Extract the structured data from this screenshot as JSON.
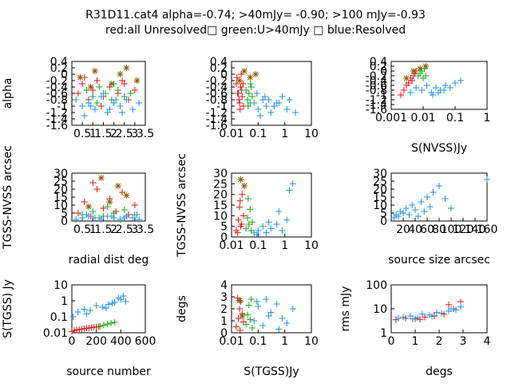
{
  "title_line1": "R31D11.cat4 alpha=-0.74; >40mJy= -0.90; >100 mJy=-0.93",
  "title_line2": "red:all Unresolved□ green:U>40mJy □ blue:Resolved",
  "colors": {
    "red": "#ee1111",
    "green": "#11aa11",
    "blue": "#1e90e6",
    "brown": "#8b5a00"
  },
  "chart_data": [
    {
      "id": "p1",
      "type": "scatter",
      "xlabel": "",
      "ylabel": "alpha",
      "xscale": "linear",
      "yscale": "linear",
      "xlim": [
        0,
        3.5
      ],
      "ylim": [
        -1.6,
        0.4
      ],
      "xticks": [
        "0.5",
        "1",
        "1.5",
        "2",
        "2.5",
        "3",
        "3.5"
      ],
      "yticks": [
        "0.4",
        "0.2",
        "0",
        "-0.2",
        "-0.4",
        "-0.6",
        "-0.8",
        "-1",
        "-1.2",
        "-1.4",
        "-1.6"
      ],
      "series": [
        {
          "color": "red",
          "marker": "plus",
          "x": [
            0.3,
            0.5,
            0.8,
            1.0,
            1.2,
            1.5,
            1.8,
            2.0,
            2.2,
            2.5,
            2.7,
            3.0,
            0.6,
            1.4,
            2.4
          ],
          "y": [
            -0.6,
            -0.3,
            -0.8,
            -0.5,
            -0.2,
            -0.7,
            -0.4,
            -0.9,
            -0.6,
            -0.3,
            -0.8,
            -0.5,
            -0.1,
            -1.0,
            -0.2
          ]
        },
        {
          "color": "brown",
          "marker": "star",
          "x": [
            0.4,
            1.1,
            1.9,
            2.6,
            3.1,
            0.9,
            2.3
          ],
          "y": [
            -0.1,
            0.1,
            -0.3,
            0.2,
            -0.2,
            -0.4,
            0.0
          ]
        },
        {
          "color": "green",
          "marker": "plus",
          "x": [
            0.7,
            1.0,
            1.3,
            1.6,
            1.9,
            2.2,
            2.5,
            2.8,
            1.2,
            2.0
          ],
          "y": [
            -0.5,
            -0.7,
            -0.4,
            -0.6,
            -0.8,
            -0.5,
            -0.7,
            -0.6,
            -0.9,
            -0.3
          ]
        },
        {
          "color": "blue",
          "marker": "plus",
          "x": [
            0.2,
            0.5,
            0.8,
            1.1,
            1.4,
            1.7,
            2.0,
            2.3,
            2.6,
            2.9,
            3.2,
            0.6,
            1.5,
            2.4,
            1.0,
            2.1,
            0.9,
            1.8
          ],
          "y": [
            -0.8,
            -1.0,
            -0.9,
            -1.1,
            -0.7,
            -1.2,
            -0.9,
            -1.0,
            -0.8,
            -1.1,
            -0.9,
            -1.3,
            -0.6,
            -1.2,
            -0.7,
            -0.8,
            -1.0,
            -1.1
          ]
        }
      ]
    },
    {
      "id": "p2",
      "type": "scatter",
      "xlabel": "",
      "ylabel": "",
      "xscale": "log",
      "yscale": "linear",
      "xlim": [
        0.01,
        10
      ],
      "ylim": [
        -1.6,
        0.4
      ],
      "xticks": [
        "0.01",
        "0.1",
        "1",
        "10"
      ],
      "yticks": [
        "0.4",
        "0.2",
        "0",
        "-0.2",
        "-0.4",
        "-0.6",
        "-0.8",
        "-1",
        "-1.2",
        "-1.4",
        "-1.6"
      ],
      "series": [
        {
          "color": "red",
          "marker": "plus",
          "x": [
            0.015,
            0.018,
            0.02,
            0.022,
            0.025,
            0.028,
            0.016,
            0.019,
            0.024,
            0.021,
            0.027,
            0.017,
            0.023
          ],
          "y": [
            -0.3,
            -0.6,
            -0.9,
            -0.4,
            -0.7,
            -1.0,
            -0.1,
            -0.8,
            -0.5,
            -1.1,
            -0.3,
            -0.6,
            0.0
          ]
        },
        {
          "color": "brown",
          "marker": "star",
          "x": [
            0.02,
            0.03,
            0.05,
            0.08
          ],
          "y": [
            -0.2,
            0.1,
            -0.1,
            0.0
          ]
        },
        {
          "color": "green",
          "marker": "plus",
          "x": [
            0.035,
            0.04,
            0.045,
            0.05,
            0.055,
            0.06,
            0.042,
            0.052
          ],
          "y": [
            -0.5,
            -0.8,
            -0.6,
            -0.9,
            -0.4,
            -0.7,
            -1.0,
            -0.3
          ]
        },
        {
          "color": "blue",
          "marker": "plus",
          "x": [
            0.07,
            0.1,
            0.15,
            0.2,
            0.3,
            0.5,
            0.8,
            1.2,
            0.09,
            0.12,
            0.25,
            0.4,
            0.6,
            1.5,
            2.5,
            0.18
          ],
          "y": [
            -0.9,
            -1.1,
            -0.8,
            -1.0,
            -1.2,
            -0.9,
            -0.7,
            -1.1,
            -0.6,
            -1.3,
            -0.8,
            -1.0,
            -0.9,
            -0.8,
            -1.2,
            -0.7
          ]
        }
      ]
    },
    {
      "id": "p3",
      "type": "scatter",
      "xlabel": "S(NVSS)Jy",
      "ylabel": "",
      "xscale": "log",
      "yscale": "linear",
      "xlim": [
        0.001,
        1
      ],
      "ylim": [
        -1.6,
        0.4
      ],
      "xticks": [
        "0.001",
        "0.01",
        "0.1",
        "1"
      ],
      "yticks": [
        "0.4",
        "0.2",
        "0",
        "-0.2",
        "-0.4",
        "-0.6",
        "-0.8",
        "-1",
        "-1.2",
        "-1.4",
        "-1.6"
      ],
      "series": [
        {
          "color": "red",
          "marker": "plus",
          "x": [
            0.002,
            0.0025,
            0.003,
            0.0035,
            0.004,
            0.0045,
            0.005,
            0.0055,
            0.006
          ],
          "y": [
            -1.0,
            -0.8,
            -0.6,
            -0.5,
            -0.3,
            -0.4,
            -0.2,
            -0.1,
            0.0
          ]
        },
        {
          "color": "brown",
          "marker": "star",
          "x": [
            0.003,
            0.005,
            0.008,
            0.012
          ],
          "y": [
            -0.3,
            0.0,
            0.1,
            0.2
          ]
        },
        {
          "color": "green",
          "marker": "plus",
          "x": [
            0.007,
            0.008,
            0.009,
            0.01,
            0.011,
            0.012
          ],
          "y": [
            -0.2,
            -0.1,
            0.0,
            -0.3,
            0.1,
            -0.2
          ]
        },
        {
          "color": "blue",
          "marker": "plus",
          "x": [
            0.004,
            0.006,
            0.009,
            0.013,
            0.018,
            0.025,
            0.035,
            0.05,
            0.07,
            0.1,
            0.15,
            0.02,
            0.03,
            0.045
          ],
          "y": [
            -0.9,
            -0.7,
            -0.8,
            -0.6,
            -0.9,
            -0.7,
            -0.8,
            -0.6,
            -0.7,
            -0.5,
            -0.4,
            -1.0,
            -0.9,
            -0.8
          ]
        }
      ]
    },
    {
      "id": "p4",
      "type": "scatter",
      "xlabel": "radial dist deg",
      "ylabel": "TGSS-NVSS arcsec",
      "xscale": "linear",
      "yscale": "linear",
      "xlim": [
        0,
        3.5
      ],
      "ylim": [
        0,
        30
      ],
      "xticks": [
        "0.5",
        "1",
        "1.5",
        "2",
        "2.5",
        "3",
        "3.5"
      ],
      "yticks": [
        "0",
        "5",
        "10",
        "15",
        "20",
        "25",
        "30"
      ],
      "series": [
        {
          "color": "red",
          "marker": "plus",
          "x": [
            0.3,
            0.6,
            0.9,
            1.2,
            1.5,
            1.8,
            2.1,
            2.4,
            2.7,
            3.0,
            1.0,
            2.0
          ],
          "y": [
            5,
            12,
            3,
            20,
            8,
            14,
            6,
            18,
            4,
            10,
            24,
            2
          ]
        },
        {
          "color": "brown",
          "marker": "star",
          "x": [
            1.4,
            2.2,
            2.6,
            0.8,
            1.8
          ],
          "y": [
            27,
            22,
            16,
            9,
            12
          ]
        },
        {
          "color": "green",
          "marker": "plus",
          "x": [
            0.5,
            1.0,
            1.5,
            2.0,
            2.5,
            3.0,
            1.7
          ],
          "y": [
            4,
            6,
            3,
            5,
            7,
            4,
            9
          ]
        },
        {
          "color": "blue",
          "marker": "plus",
          "x": [
            0.2,
            0.5,
            0.8,
            1.1,
            1.4,
            1.7,
            2.0,
            2.3,
            2.6,
            2.9,
            3.2,
            0.7,
            1.3,
            1.9,
            2.5,
            3.1
          ],
          "y": [
            1,
            2,
            3,
            2,
            1,
            3,
            2,
            1,
            3,
            2,
            1,
            4,
            2,
            3,
            2,
            4
          ]
        }
      ]
    },
    {
      "id": "p5",
      "type": "scatter",
      "xlabel": "",
      "ylabel": "TGSS-NVSS arcsec",
      "xscale": "log",
      "yscale": "linear",
      "xlim": [
        0.01,
        10
      ],
      "ylim": [
        0,
        30
      ],
      "xticks": [
        "0.01",
        "0.1",
        "1",
        "10"
      ],
      "yticks": [
        "0",
        "5",
        "10",
        "15",
        "20",
        "25",
        "30"
      ],
      "series": [
        {
          "color": "red",
          "marker": "plus",
          "x": [
            0.015,
            0.018,
            0.02,
            0.022,
            0.025,
            0.028,
            0.017,
            0.021,
            0.024
          ],
          "y": [
            3,
            8,
            14,
            5,
            20,
            10,
            2,
            17,
            6
          ]
        },
        {
          "color": "brown",
          "marker": "star",
          "x": [
            0.022,
            0.03
          ],
          "y": [
            27,
            24
          ]
        },
        {
          "color": "green",
          "marker": "plus",
          "x": [
            0.035,
            0.04,
            0.045,
            0.05,
            0.055,
            0.06,
            0.042
          ],
          "y": [
            4,
            9,
            6,
            13,
            3,
            7,
            18
          ]
        },
        {
          "color": "blue",
          "marker": "plus",
          "x": [
            0.07,
            0.1,
            0.15,
            0.2,
            0.3,
            0.5,
            0.8,
            1.2,
            2.0,
            0.09,
            0.25,
            0.6,
            1.5
          ],
          "y": [
            2,
            3,
            5,
            2,
            4,
            6,
            3,
            8,
            25,
            1,
            7,
            12,
            22
          ]
        }
      ]
    },
    {
      "id": "p6",
      "type": "scatter",
      "xlabel": "source size arcsec",
      "ylabel": "",
      "xscale": "linear",
      "yscale": "linear",
      "xlim": [
        0,
        160
      ],
      "ylim": [
        0,
        30
      ],
      "xticks": [
        "20",
        "40",
        "60",
        "80",
        "100",
        "120",
        "140",
        "160"
      ],
      "yticks": [
        "0",
        "5",
        "10",
        "15",
        "20",
        "25",
        "30"
      ],
      "series": [
        {
          "color": "blue",
          "marker": "plus",
          "x": [
            5,
            8,
            12,
            15,
            20,
            25,
            30,
            35,
            40,
            50,
            60,
            70,
            80,
            90,
            100,
            45,
            55,
            65,
            160
          ],
          "y": [
            2,
            4,
            3,
            6,
            5,
            8,
            4,
            10,
            7,
            12,
            15,
            18,
            22,
            14,
            8,
            3,
            6,
            9,
            26
          ]
        }
      ]
    },
    {
      "id": "p7",
      "type": "scatter",
      "xlabel": "source number",
      "ylabel": "S(TGSS) Jy",
      "xscale": "linear",
      "yscale": "log",
      "xlim": [
        0,
        600
      ],
      "ylim": [
        0.01,
        10
      ],
      "xticks": [
        "0",
        "200",
        "400",
        "600"
      ],
      "yticks": [
        "10",
        "1",
        "0.1",
        "0.01"
      ],
      "series": [
        {
          "color": "red",
          "marker": "plus",
          "x": [
            0,
            20,
            40,
            60,
            80,
            100,
            120,
            140,
            160,
            180,
            200,
            220
          ],
          "y": [
            0.012,
            0.014,
            0.015,
            0.016,
            0.017,
            0.018,
            0.019,
            0.02,
            0.021,
            0.022,
            0.023,
            0.024
          ]
        },
        {
          "color": "green",
          "marker": "plus",
          "x": [
            230,
            260,
            290,
            320,
            350
          ],
          "y": [
            0.025,
            0.03,
            0.035,
            0.04,
            0.045
          ]
        },
        {
          "color": "blue",
          "marker": "plus",
          "x": [
            10,
            50,
            100,
            150,
            200,
            250,
            300,
            350,
            400,
            420,
            440,
            380,
            330,
            280,
            120
          ],
          "y": [
            0.1,
            0.2,
            0.3,
            0.25,
            0.5,
            0.4,
            0.6,
            0.8,
            1.2,
            2.0,
            0.9,
            1.5,
            0.7,
            0.35,
            0.15
          ]
        }
      ]
    },
    {
      "id": "p8",
      "type": "scatter",
      "xlabel": "S(TGSS)Jy",
      "ylabel": "degs",
      "xscale": "log",
      "yscale": "linear",
      "xlim": [
        0.01,
        10
      ],
      "ylim": [
        0,
        4
      ],
      "xticks": [
        "0.01",
        "0.1",
        "1",
        "10"
      ],
      "yticks": [
        "0",
        "1",
        "2",
        "3",
        "4"
      ],
      "series": [
        {
          "color": "red",
          "marker": "plus",
          "x": [
            0.015,
            0.018,
            0.02,
            0.022,
            0.025,
            0.028,
            0.017,
            0.021
          ],
          "y": [
            0.5,
            1.2,
            2.0,
            2.6,
            1.6,
            0.9,
            2.9,
            0.2
          ]
        },
        {
          "color": "brown",
          "marker": "star",
          "x": [
            0.02,
            0.025
          ],
          "y": [
            2.7,
            1.4
          ]
        },
        {
          "color": "green",
          "marker": "plus",
          "x": [
            0.035,
            0.04,
            0.045,
            0.05,
            0.055,
            0.06
          ],
          "y": [
            0.7,
            1.5,
            2.3,
            1.1,
            2.8,
            0.4
          ]
        },
        {
          "color": "blue",
          "marker": "plus",
          "x": [
            0.07,
            0.1,
            0.15,
            0.2,
            0.3,
            0.5,
            0.8,
            1.2,
            2.0,
            0.09,
            0.25,
            0.6
          ],
          "y": [
            1.0,
            2.2,
            0.6,
            2.8,
            1.7,
            2.4,
            1.2,
            0.8,
            2.0,
            2.6,
            1.4,
            0.3
          ]
        }
      ]
    },
    {
      "id": "p9",
      "type": "scatter",
      "xlabel": "degs",
      "ylabel": "rms mJy",
      "xscale": "linear",
      "yscale": "log",
      "xlim": [
        0,
        4
      ],
      "ylim": [
        1,
        100
      ],
      "xticks": [
        "0",
        "1",
        "2",
        "3",
        "4"
      ],
      "yticks": [
        "100",
        "10",
        "1"
      ],
      "series": [
        {
          "color": "red",
          "marker": "plus",
          "x": [
            0.2,
            0.6,
            1.0,
            1.4,
            1.8,
            2.2,
            2.6,
            2.9,
            1.2,
            2.4
          ],
          "y": [
            3.5,
            4,
            3.8,
            4.5,
            5,
            6,
            10,
            20,
            3.6,
            15
          ]
        },
        {
          "color": "blue",
          "marker": "plus",
          "x": [
            0.3,
            0.5,
            0.8,
            1.1,
            1.3,
            1.6,
            1.9,
            2.1,
            2.4,
            2.7,
            2.9,
            0.9,
            1.7,
            2.5
          ],
          "y": [
            4,
            4.5,
            5,
            4.2,
            6,
            5.5,
            7,
            6.5,
            8,
            9,
            12,
            3.8,
            4.8,
            10
          ]
        }
      ]
    }
  ]
}
